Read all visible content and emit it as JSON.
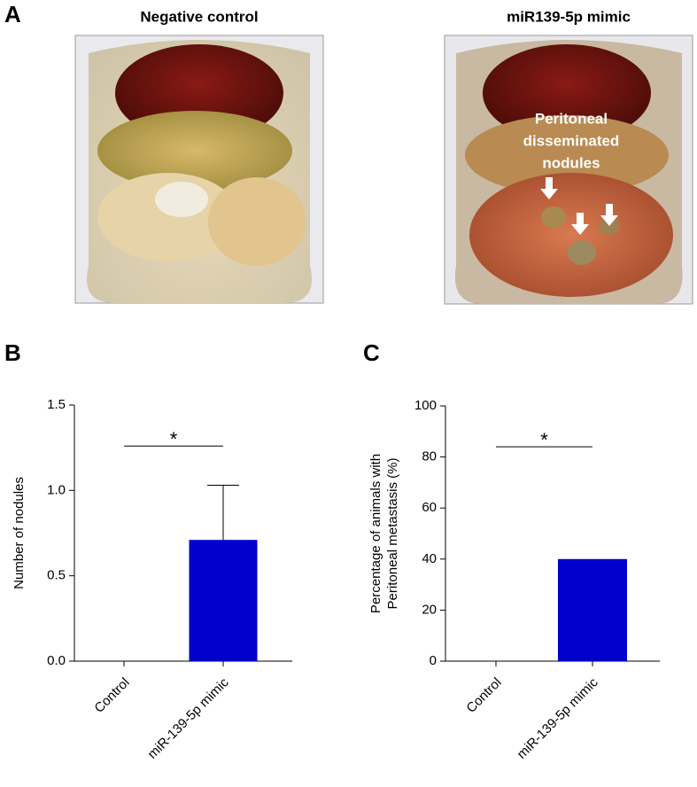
{
  "panels": [
    "A",
    "B",
    "C"
  ],
  "photos": [
    {
      "title": "Negative control"
    },
    {
      "title": "miR139-5p mimic",
      "annotation": [
        "Peritoneal",
        "disseminated",
        "nodules"
      ]
    }
  ],
  "chart_data": [
    {
      "type": "bar",
      "ylabel": "Number of nodules",
      "categories": [
        "Control",
        "miR-139-5p mimic"
      ],
      "values": [
        0,
        0.71
      ],
      "errors": [
        0,
        0.32
      ],
      "color": "#0000cc",
      "ylim": [
        0,
        1.5
      ],
      "yticks": [
        {
          "value": 0,
          "label": "0.0"
        },
        {
          "value": 0.5,
          "label": "0.5"
        },
        {
          "value": 1,
          "label": "1.0"
        },
        {
          "value": 1.5,
          "label": "1.5"
        }
      ],
      "significance": "*"
    },
    {
      "type": "bar",
      "ylabel": [
        "Percentage of animals with",
        "Peritoneal metastasis (%)"
      ],
      "categories": [
        "Control",
        "miR-139-5p mimic"
      ],
      "values": [
        0,
        40
      ],
      "color": "#0000cc",
      "ylim": [
        0,
        100
      ],
      "yticks": [
        0,
        20,
        40,
        60,
        80,
        100
      ],
      "significance": "*"
    }
  ]
}
